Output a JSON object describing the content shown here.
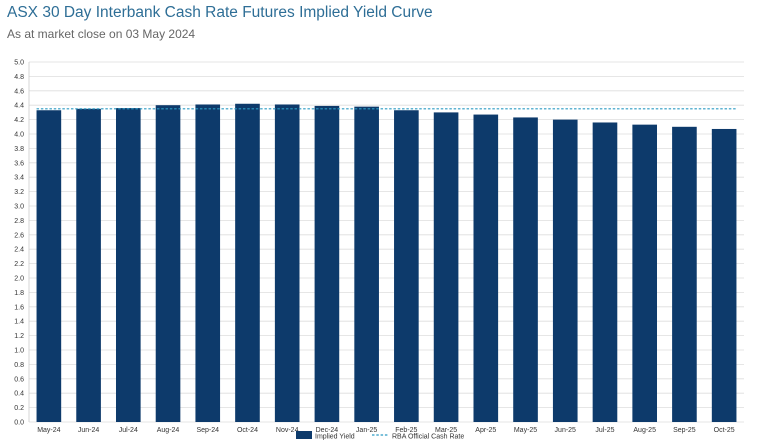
{
  "header": {
    "title": "ASX 30 Day Interbank Cash Rate Futures Implied Yield Curve",
    "subtitle": "As at market close on 03 May 2024"
  },
  "chart_data": {
    "type": "bar",
    "categories": [
      "May-24",
      "Jun-24",
      "Jul-24",
      "Aug-24",
      "Sep-24",
      "Oct-24",
      "Nov-24",
      "Dec-24",
      "Jan-25",
      "Feb-25",
      "Mar-25",
      "Apr-25",
      "May-25",
      "Jun-25",
      "Jul-25",
      "Aug-25",
      "Sep-25",
      "Oct-25"
    ],
    "series": [
      {
        "name": "Implied Yield",
        "type": "bar",
        "color": "#0d3a6b",
        "values": [
          4.33,
          4.35,
          4.36,
          4.4,
          4.41,
          4.42,
          4.41,
          4.39,
          4.38,
          4.33,
          4.3,
          4.27,
          4.23,
          4.2,
          4.16,
          4.13,
          4.1,
          4.07
        ]
      },
      {
        "name": "RBA Official Cash Rate",
        "type": "line",
        "style": "dashed",
        "color": "#2c9bc4",
        "values": [
          4.35,
          4.35,
          4.35,
          4.35,
          4.35,
          4.35,
          4.35,
          4.35,
          4.35,
          4.35,
          4.35,
          4.35,
          4.35,
          4.35,
          4.35,
          4.35,
          4.35,
          4.35
        ]
      }
    ],
    "yticks": [
      "0.0",
      "0.2",
      "0.4",
      "0.6",
      "0.8",
      "1.0",
      "1.2",
      "1.4",
      "1.6",
      "1.8",
      "2.0",
      "2.2",
      "2.4",
      "2.6",
      "2.8",
      "3.0",
      "3.2",
      "3.4",
      "3.6",
      "3.8",
      "4.0",
      "4.2",
      "4.4",
      "4.6",
      "4.8",
      "5.0"
    ],
    "ylim": [
      0,
      5.0
    ],
    "grid": true,
    "legend_position": "bottom-center"
  }
}
